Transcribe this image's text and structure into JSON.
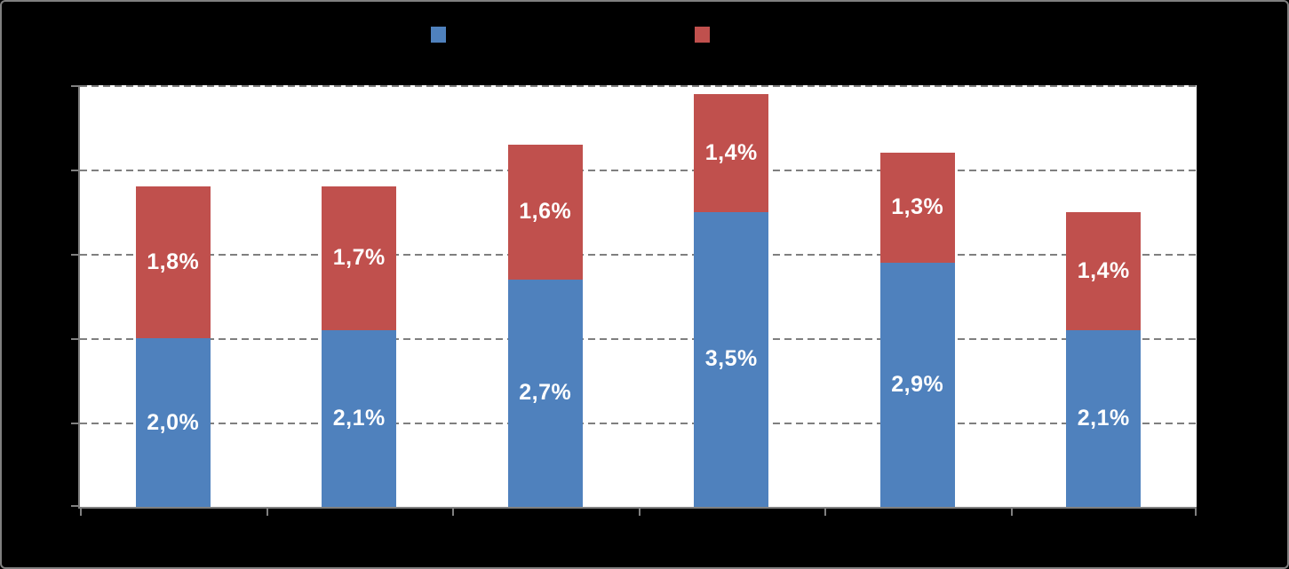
{
  "window": {
    "background": "#000000",
    "border_color": "#808080"
  },
  "legend": {
    "position": "top",
    "items": [
      {
        "label": "",
        "swatch_color": "#4F81BD"
      },
      {
        "label": "",
        "swatch_color": "#C0504D"
      }
    ]
  },
  "chart_data": {
    "type": "bar",
    "stacked": true,
    "orientation": "vertical",
    "title": "",
    "xlabel": "",
    "ylabel": "",
    "categories": [
      "",
      "",
      "",
      "",
      "",
      ""
    ],
    "series": [
      {
        "name": "",
        "color": "#4F81BD",
        "values": [
          2.0,
          2.1,
          2.7,
          3.5,
          2.9,
          2.1
        ],
        "labels": [
          "2,0%",
          "2,1%",
          "2,7%",
          "3,5%",
          "2,9%",
          "2,1%"
        ]
      },
      {
        "name": "",
        "color": "#C0504D",
        "values": [
          1.8,
          1.7,
          1.6,
          1.4,
          1.3,
          1.4
        ],
        "labels": [
          "1,8%",
          "1,7%",
          "1,6%",
          "1,4%",
          "1,3%",
          "1,4%"
        ]
      }
    ],
    "ylim": [
      0,
      5
    ],
    "y_gridline_step": 1,
    "grid": true,
    "gridline_style": "dashed",
    "gridline_color": "#7F7F7F",
    "axis_color": "#808080",
    "plot_background": "#FFFFFF",
    "legend_position": "top",
    "tick_labels_visible": false,
    "data_label_color": "#FFFFFF"
  }
}
